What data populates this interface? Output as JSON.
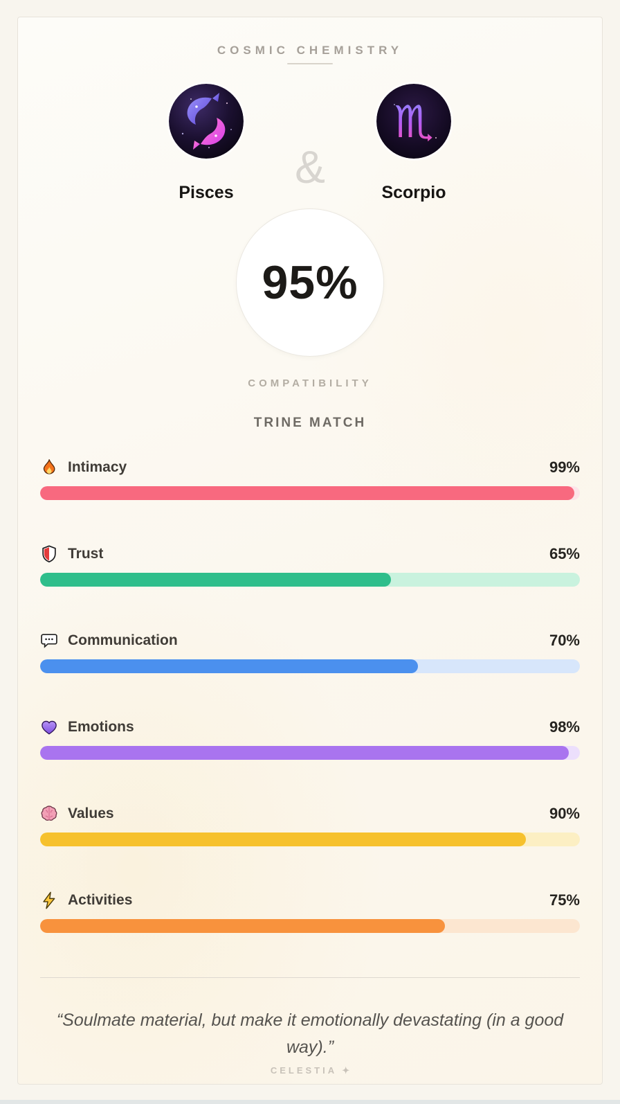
{
  "header": {
    "title": "COSMIC CHEMISTRY"
  },
  "signs": {
    "left": {
      "name": "Pisces",
      "icon": "pisces-avatar"
    },
    "separator": "&",
    "right": {
      "name": "Scorpio",
      "icon": "scorpio-avatar"
    }
  },
  "score": {
    "value": "95%",
    "caption": "COMPATIBILITY",
    "match_type": "TRINE MATCH"
  },
  "stats": [
    {
      "label": "Intimacy",
      "value": 99,
      "display": "99%",
      "icon": "fire-icon",
      "fill_color": "#f8697f",
      "track_color": "#fde4e9"
    },
    {
      "label": "Trust",
      "value": 65,
      "display": "65%",
      "icon": "shield-icon",
      "fill_color": "#2fbe8b",
      "track_color": "#c9f2de"
    },
    {
      "label": "Communication",
      "value": 70,
      "display": "70%",
      "icon": "speech-bubble-icon",
      "fill_color": "#4b90ee",
      "track_color": "#d7e6fb"
    },
    {
      "label": "Emotions",
      "value": 98,
      "display": "98%",
      "icon": "purple-heart-icon",
      "fill_color": "#a974ef",
      "track_color": "#ecdffc"
    },
    {
      "label": "Values",
      "value": 90,
      "display": "90%",
      "icon": "brain-icon",
      "fill_color": "#f6c12d",
      "track_color": "#fcefc3"
    },
    {
      "label": "Activities",
      "value": 75,
      "display": "75%",
      "icon": "lightning-icon",
      "fill_color": "#f8923d",
      "track_color": "#fce6d0"
    }
  ],
  "quote": "“Soulmate material, but make it emotionally devastating (in a good way).”",
  "footer": {
    "brand": "CELESTIA",
    "star": "✦"
  }
}
